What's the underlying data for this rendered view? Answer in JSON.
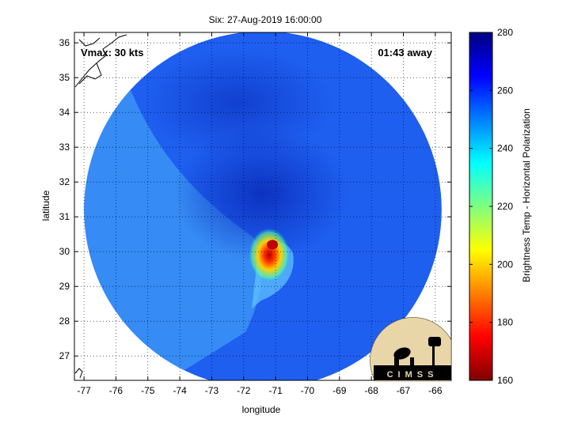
{
  "chart_data": {
    "type": "heatmap",
    "title": "Six: 27-Aug-2019 16:00:00",
    "xlabel": "longitude",
    "ylabel": "latitude",
    "xlim": [
      -77.3,
      -65.5
    ],
    "ylim": [
      26.3,
      36.3
    ],
    "xticks": [
      -77,
      -76,
      -75,
      -74,
      -73,
      -72,
      -71,
      -70,
      -69,
      -68,
      -67,
      -66
    ],
    "yticks": [
      27,
      28,
      29,
      30,
      31,
      32,
      33,
      34,
      35,
      36
    ],
    "grid": true,
    "annotations": {
      "vmax": "Vmax: 30 kts",
      "time_away": "01:43 away"
    },
    "colorbar": {
      "label": "Brightness Temp - Horizontal Polarization",
      "range": [
        160,
        280
      ],
      "ticks": [
        160,
        180,
        200,
        220,
        240,
        260,
        280
      ],
      "colormap": "jet"
    },
    "swath": {
      "center_lon": -71.4,
      "center_lat": 31.2,
      "radius_deg_lon": 5.6,
      "background_value": 262
    },
    "features": [
      {
        "name": "eye region",
        "lon": -71.2,
        "lat": 29.9,
        "value": 185
      },
      {
        "name": "convective core",
        "lon": -71.1,
        "lat": 30.2,
        "value": 170
      }
    ]
  },
  "logo": {
    "text": "CIMSS"
  },
  "colors": {
    "background": "#ffffff",
    "swath_base": "#1e5ff0",
    "swath_dark": "#0a2ecf",
    "cold_band": "#3f9af7"
  }
}
